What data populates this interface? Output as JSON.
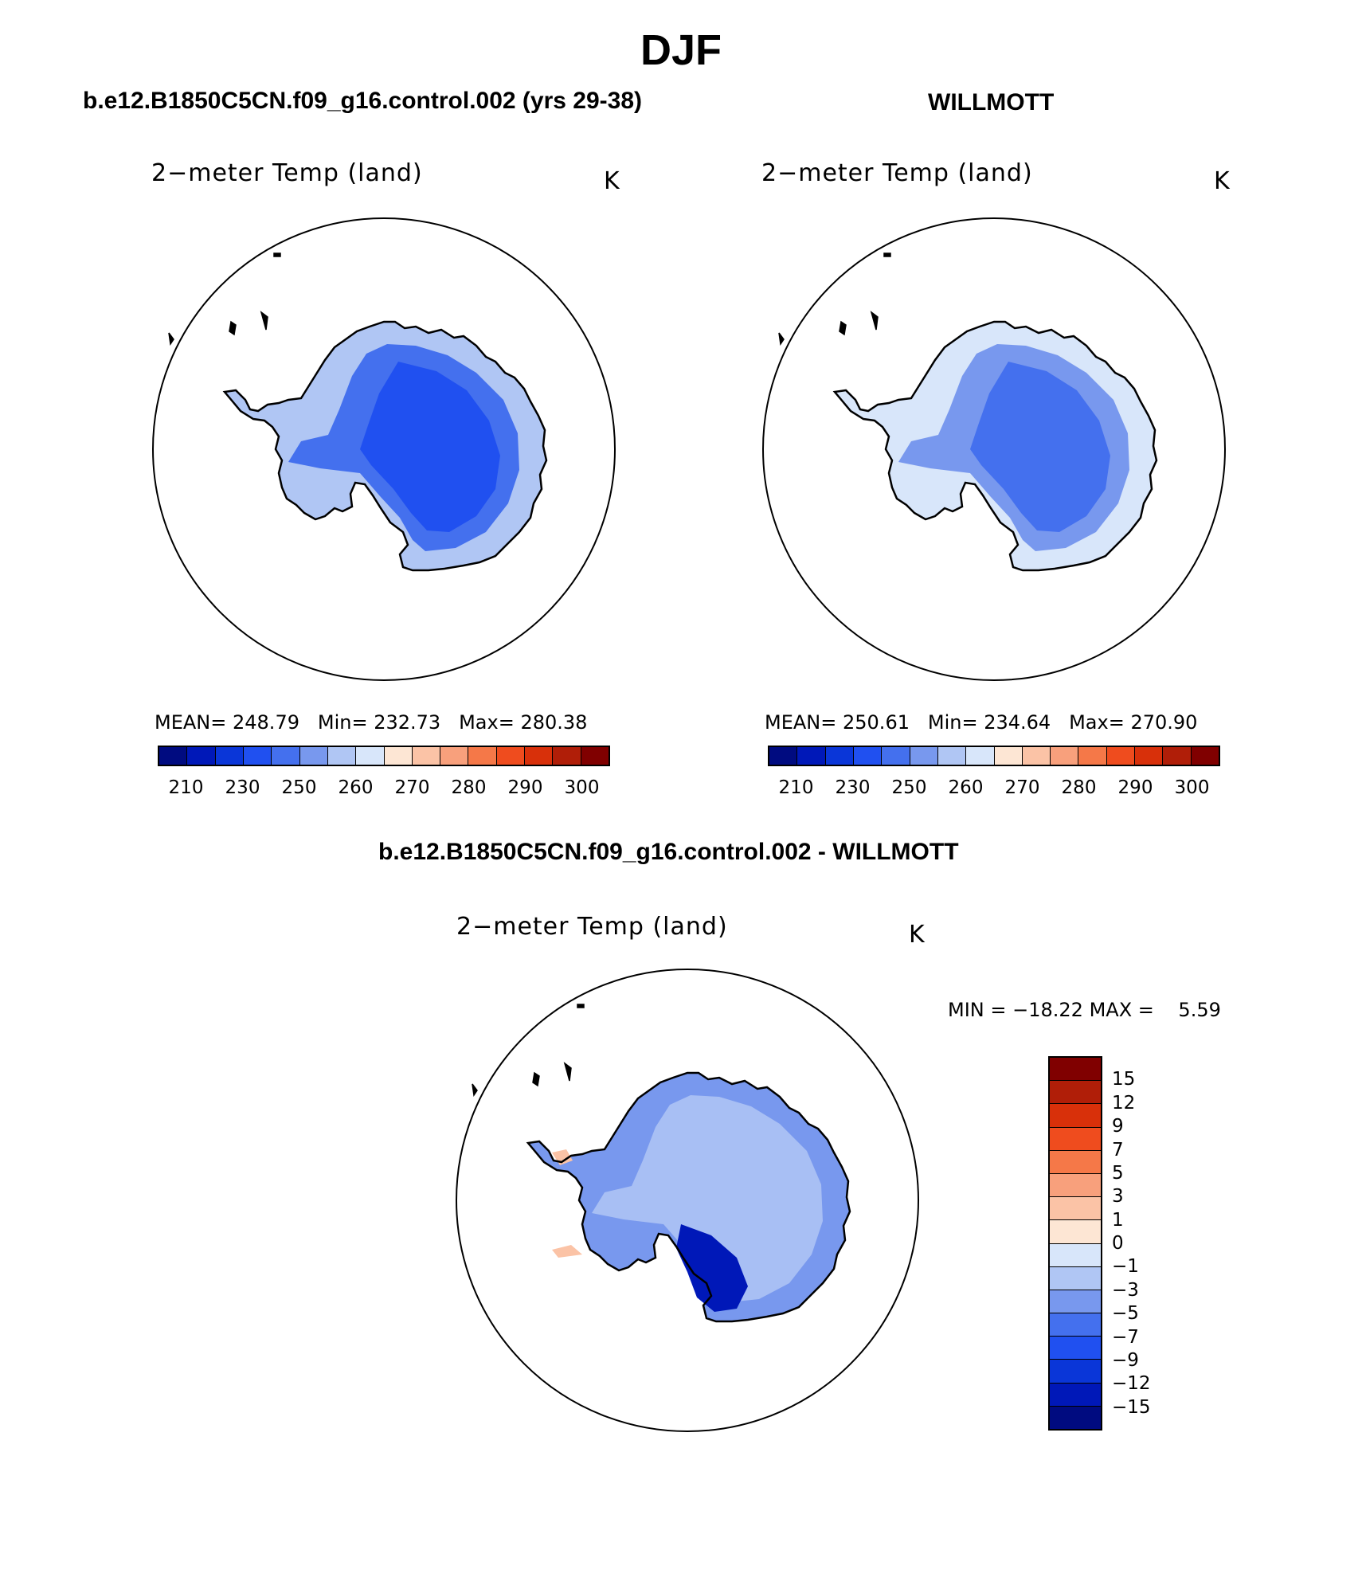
{
  "title": "DJF",
  "panels": [
    {
      "heading": "b.e12.B1850C5CN.f09_g16.control.002 (yrs 29-38)",
      "field": "2−meter Temp (land)",
      "units": "K",
      "stats": {
        "mean_label": "MEAN=",
        "mean": "248.79",
        "min_label": "Min=",
        "min": "232.73",
        "max_label": "Max=",
        "max": "280.38"
      }
    },
    {
      "heading": "WILLMOTT",
      "field": "2−meter Temp (land)",
      "units": "K",
      "stats": {
        "mean_label": "MEAN=",
        "mean": "250.61",
        "min_label": "Min=",
        "min": "234.64",
        "max_label": "Max=",
        "max": "270.90"
      }
    },
    {
      "heading": "b.e12.B1850C5CN.f09_g16.control.002 - WILLMOTT",
      "field": "2−meter Temp (land)",
      "units": "K",
      "stats": {
        "min_label": "MIN =",
        "min": "−18.22",
        "max_label": "MAX =",
        "max": "5.59"
      }
    }
  ],
  "abs_colorbar": {
    "colors": [
      "#000b80",
      "#0018b8",
      "#0a36d8",
      "#2050f0",
      "#4470ee",
      "#7898ee",
      "#b0c6f4",
      "#d8e6fa",
      "#fde6d4",
      "#fbc3a6",
      "#f8a07c",
      "#f57848",
      "#ef4c1e",
      "#d8300a",
      "#b01e08",
      "#800000"
    ],
    "ticks": [
      "210",
      "230",
      "250",
      "260",
      "270",
      "280",
      "290",
      "300"
    ]
  },
  "diff_colorbar": {
    "colors": [
      "#800000",
      "#b01e08",
      "#d8300a",
      "#ef4c1e",
      "#f57848",
      "#f8a07c",
      "#fbc3a6",
      "#fde6d4",
      "#d8e6fa",
      "#b0c6f4",
      "#7898ee",
      "#4470ee",
      "#2050f0",
      "#0a36d8",
      "#0018b8",
      "#000b80"
    ],
    "ticks": [
      "15",
      "12",
      "9",
      "7",
      "5",
      "3",
      "1",
      "0",
      "−1",
      "−3",
      "−5",
      "−7",
      "−9",
      "−12",
      "−15"
    ]
  }
}
